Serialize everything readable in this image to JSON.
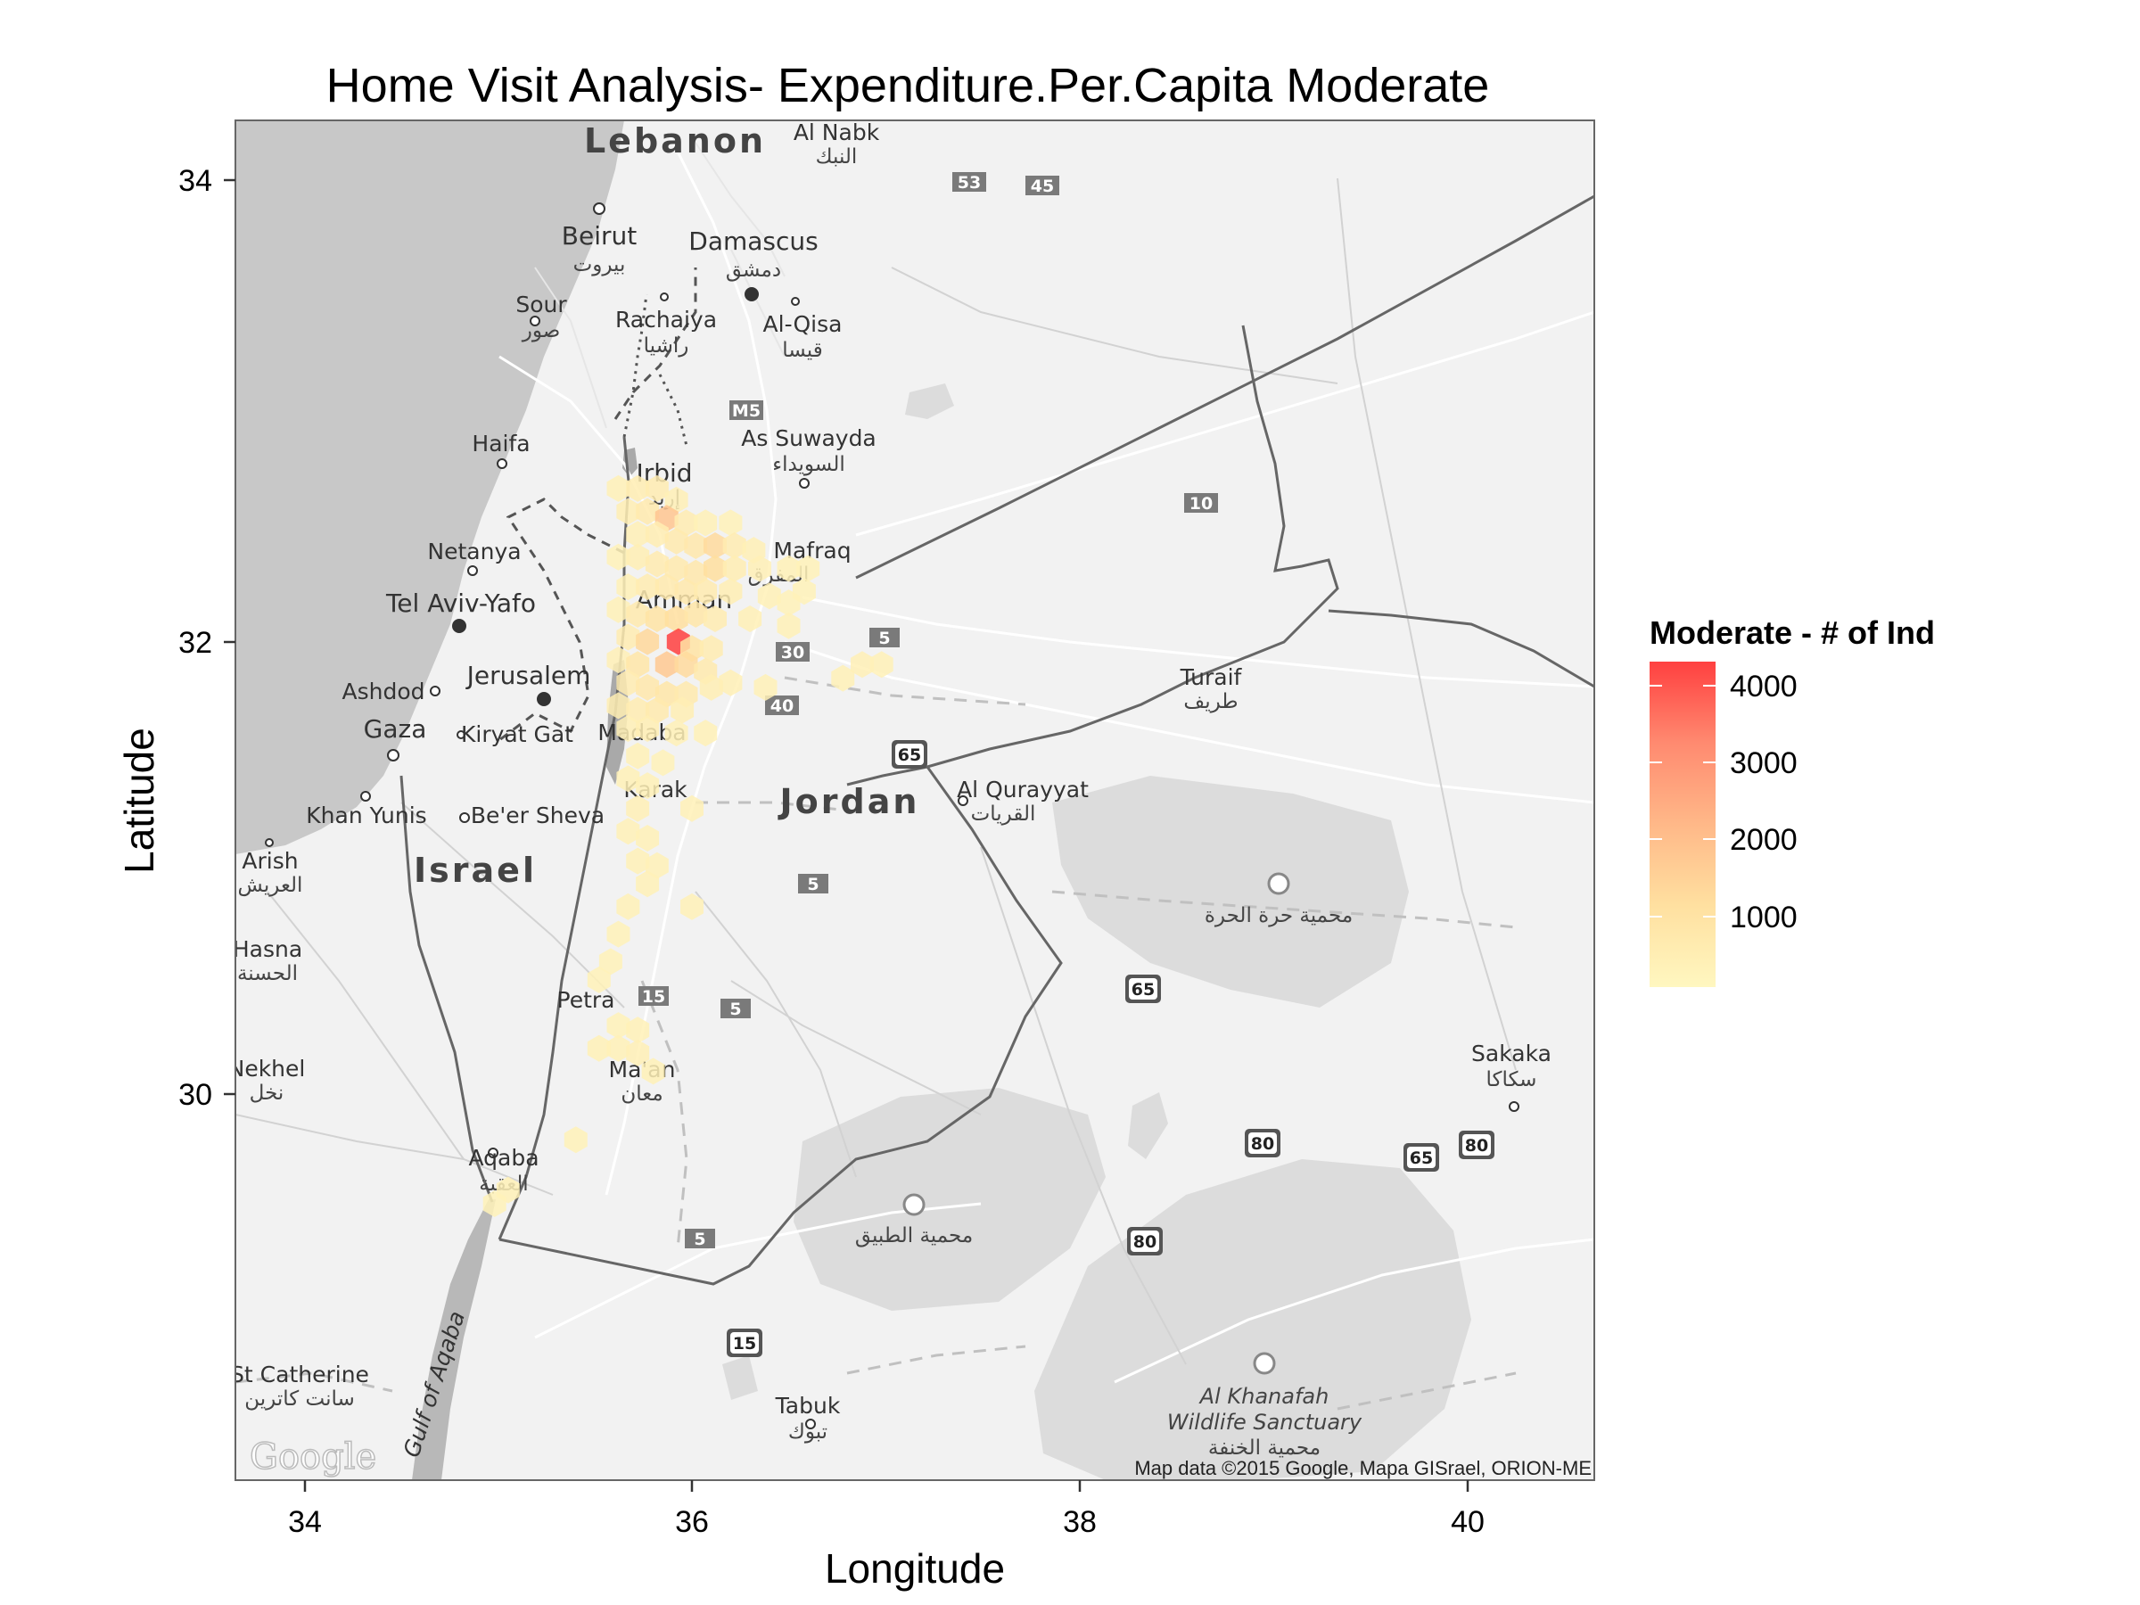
{
  "title": "Home Visit Analysis- Expenditure.Per.Capita Moderate",
  "x_axis": {
    "label": "Longitude",
    "ticks": [
      "34",
      "36",
      "38",
      "40"
    ]
  },
  "y_axis": {
    "label": "Latitude",
    "ticks": [
      "34",
      "32",
      "30"
    ]
  },
  "legend": {
    "title": "Moderate - # of Ind",
    "labels": [
      "4000",
      "3000",
      "2000",
      "1000"
    ],
    "color_low": "#FFF7C0",
    "color_high": "#FF4040"
  },
  "attribution": "Map data ©2015 Google, Mapa GISrael, ORION-ME",
  "logo": "Google",
  "map_labels": {
    "countries": [
      "Lebanon",
      "Jordan",
      "Israel"
    ],
    "cities": [
      {
        "name": "Al Nabk",
        "ar": "النبك"
      },
      {
        "name": "Beirut",
        "ar": "بيروت"
      },
      {
        "name": "Damascus",
        "ar": "دمشق"
      },
      {
        "name": "Sour",
        "ar": "صور"
      },
      {
        "name": "Rachaiya",
        "ar": "راشيا"
      },
      {
        "name": "Al-Qisa",
        "ar": "قيسا"
      },
      {
        "name": "As Suwayda",
        "ar": "السويداء"
      },
      {
        "name": "Haifa",
        "ar": ""
      },
      {
        "name": "Irbid",
        "ar": "إربد"
      },
      {
        "name": "Mafraq",
        "ar": "المفرق"
      },
      {
        "name": "Netanya",
        "ar": ""
      },
      {
        "name": "Tel Aviv-Yafo",
        "ar": ""
      },
      {
        "name": "Amman",
        "ar": ""
      },
      {
        "name": "Ashdod",
        "ar": ""
      },
      {
        "name": "Jerusalem",
        "ar": ""
      },
      {
        "name": "Gaza",
        "ar": ""
      },
      {
        "name": "Kiryat Gat",
        "ar": ""
      },
      {
        "name": "Madaba",
        "ar": ""
      },
      {
        "name": "Turaif",
        "ar": "طريف"
      },
      {
        "name": "Al Qurayyat",
        "ar": "القريات"
      },
      {
        "name": "Khan Yunis",
        "ar": ""
      },
      {
        "name": "Be'er Sheva",
        "ar": ""
      },
      {
        "name": "Karak",
        "ar": ""
      },
      {
        "name": "Arish",
        "ar": "العريش"
      },
      {
        "name": "Hasna",
        "ar": "الحسنة"
      },
      {
        "name": "Petra",
        "ar": ""
      },
      {
        "name": "Ma'an",
        "ar": "معان"
      },
      {
        "name": "Nekhel",
        "ar": "نخل"
      },
      {
        "name": "Sakaka",
        "ar": "سكاكا"
      },
      {
        "name": "Aqaba",
        "ar": "العقبة"
      },
      {
        "name": "St Catherine",
        "ar": "سانت كاترين"
      },
      {
        "name": "Tabuk",
        "ar": "تبوك"
      }
    ],
    "reserves": [
      {
        "ar": "محمية حرة الحرة"
      },
      {
        "ar": "محمية الطبيق"
      },
      {
        "name": "Al Khanafah Wildlife Sanctuary",
        "ar": "محمية الخنفة"
      }
    ],
    "water": [
      "Gulf of Aqaba"
    ],
    "road_shields": [
      "53",
      "45",
      "M5",
      "10",
      "30",
      "5",
      "40",
      "65",
      "5",
      "65",
      "15",
      "5",
      "80",
      "65",
      "80",
      "5",
      "80",
      "15"
    ]
  },
  "chart_data": {
    "type": "heatmap",
    "subtype": "hexbin-over-map",
    "title": "Home Visit Analysis- Expenditure.Per.Capita Moderate",
    "xlabel": "Longitude",
    "ylabel": "Latitude",
    "xlim": [
      33.6,
      40.67
    ],
    "ylim": [
      28.3,
      34.25
    ],
    "legend_title": "Moderate - # of Ind",
    "color_range": [
      0,
      4300
    ],
    "colorbar_ticks": [
      1000,
      2000,
      3000,
      4000
    ],
    "points": [
      {
        "lon": 35.62,
        "lat": 32.65,
        "count": 300
      },
      {
        "lon": 35.72,
        "lat": 32.65,
        "count": 450
      },
      {
        "lon": 35.82,
        "lat": 32.65,
        "count": 500
      },
      {
        "lon": 35.92,
        "lat": 32.6,
        "count": 350
      },
      {
        "lon": 35.67,
        "lat": 32.55,
        "count": 400
      },
      {
        "lon": 35.77,
        "lat": 32.55,
        "count": 600
      },
      {
        "lon": 35.87,
        "lat": 32.52,
        "count": 1800
      },
      {
        "lon": 35.97,
        "lat": 32.5,
        "count": 500
      },
      {
        "lon": 36.07,
        "lat": 32.5,
        "count": 300
      },
      {
        "lon": 36.2,
        "lat": 32.5,
        "count": 250
      },
      {
        "lon": 35.72,
        "lat": 32.45,
        "count": 350
      },
      {
        "lon": 35.82,
        "lat": 32.45,
        "count": 450
      },
      {
        "lon": 35.92,
        "lat": 32.42,
        "count": 600
      },
      {
        "lon": 36.02,
        "lat": 32.4,
        "count": 700
      },
      {
        "lon": 36.12,
        "lat": 32.4,
        "count": 1200
      },
      {
        "lon": 36.22,
        "lat": 32.4,
        "count": 500
      },
      {
        "lon": 36.32,
        "lat": 32.38,
        "count": 350
      },
      {
        "lon": 35.62,
        "lat": 32.35,
        "count": 250
      },
      {
        "lon": 35.72,
        "lat": 32.35,
        "count": 400
      },
      {
        "lon": 35.82,
        "lat": 32.32,
        "count": 550
      },
      {
        "lon": 35.92,
        "lat": 32.3,
        "count": 600
      },
      {
        "lon": 36.02,
        "lat": 32.28,
        "count": 700
      },
      {
        "lon": 36.12,
        "lat": 32.3,
        "count": 1100
      },
      {
        "lon": 36.22,
        "lat": 32.3,
        "count": 450
      },
      {
        "lon": 36.35,
        "lat": 32.3,
        "count": 350
      },
      {
        "lon": 36.5,
        "lat": 32.3,
        "count": 300
      },
      {
        "lon": 36.6,
        "lat": 32.3,
        "count": 250
      },
      {
        "lon": 35.67,
        "lat": 32.22,
        "count": 300
      },
      {
        "lon": 35.77,
        "lat": 32.22,
        "count": 500
      },
      {
        "lon": 35.87,
        "lat": 32.22,
        "count": 600
      },
      {
        "lon": 35.97,
        "lat": 32.2,
        "count": 650
      },
      {
        "lon": 36.07,
        "lat": 32.2,
        "count": 550
      },
      {
        "lon": 36.2,
        "lat": 32.2,
        "count": 400
      },
      {
        "lon": 36.4,
        "lat": 32.18,
        "count": 300
      },
      {
        "lon": 36.5,
        "lat": 32.15,
        "count": 250
      },
      {
        "lon": 36.58,
        "lat": 32.2,
        "count": 250
      },
      {
        "lon": 35.62,
        "lat": 32.12,
        "count": 300
      },
      {
        "lon": 35.72,
        "lat": 32.1,
        "count": 600
      },
      {
        "lon": 35.82,
        "lat": 32.08,
        "count": 900
      },
      {
        "lon": 35.92,
        "lat": 32.08,
        "count": 1100
      },
      {
        "lon": 36.02,
        "lat": 32.1,
        "count": 800
      },
      {
        "lon": 36.12,
        "lat": 32.08,
        "count": 500
      },
      {
        "lon": 36.3,
        "lat": 32.08,
        "count": 350
      },
      {
        "lon": 36.5,
        "lat": 32.05,
        "count": 300
      },
      {
        "lon": 35.67,
        "lat": 32.0,
        "count": 500
      },
      {
        "lon": 35.77,
        "lat": 31.98,
        "count": 1300
      },
      {
        "lon": 35.93,
        "lat": 31.98,
        "count": 4300
      },
      {
        "lon": 36.0,
        "lat": 31.95,
        "count": 900
      },
      {
        "lon": 36.1,
        "lat": 31.95,
        "count": 500
      },
      {
        "lon": 35.62,
        "lat": 31.9,
        "count": 350
      },
      {
        "lon": 35.72,
        "lat": 31.88,
        "count": 800
      },
      {
        "lon": 35.87,
        "lat": 31.88,
        "count": 1700
      },
      {
        "lon": 35.97,
        "lat": 31.88,
        "count": 1200
      },
      {
        "lon": 36.07,
        "lat": 31.85,
        "count": 600
      },
      {
        "lon": 36.2,
        "lat": 31.8,
        "count": 350
      },
      {
        "lon": 35.67,
        "lat": 31.8,
        "count": 500
      },
      {
        "lon": 35.77,
        "lat": 31.78,
        "count": 700
      },
      {
        "lon": 35.87,
        "lat": 31.75,
        "count": 800
      },
      {
        "lon": 35.97,
        "lat": 31.75,
        "count": 600
      },
      {
        "lon": 36.1,
        "lat": 31.78,
        "count": 400
      },
      {
        "lon": 36.38,
        "lat": 31.78,
        "count": 300
      },
      {
        "lon": 36.78,
        "lat": 31.82,
        "count": 300
      },
      {
        "lon": 36.88,
        "lat": 31.88,
        "count": 350
      },
      {
        "lon": 36.98,
        "lat": 31.88,
        "count": 300
      },
      {
        "lon": 35.62,
        "lat": 31.7,
        "count": 400
      },
      {
        "lon": 35.72,
        "lat": 31.68,
        "count": 500
      },
      {
        "lon": 35.82,
        "lat": 31.68,
        "count": 600
      },
      {
        "lon": 35.95,
        "lat": 31.68,
        "count": 400
      },
      {
        "lon": 35.67,
        "lat": 31.6,
        "count": 350
      },
      {
        "lon": 35.77,
        "lat": 31.6,
        "count": 400
      },
      {
        "lon": 35.92,
        "lat": 31.58,
        "count": 300
      },
      {
        "lon": 36.07,
        "lat": 31.58,
        "count": 300
      },
      {
        "lon": 35.72,
        "lat": 31.48,
        "count": 300
      },
      {
        "lon": 35.85,
        "lat": 31.45,
        "count": 250
      },
      {
        "lon": 35.67,
        "lat": 31.38,
        "count": 300
      },
      {
        "lon": 35.77,
        "lat": 31.35,
        "count": 300
      },
      {
        "lon": 35.72,
        "lat": 31.25,
        "count": 350
      },
      {
        "lon": 36.0,
        "lat": 31.25,
        "count": 300
      },
      {
        "lon": 35.67,
        "lat": 31.15,
        "count": 300
      },
      {
        "lon": 35.77,
        "lat": 31.12,
        "count": 300
      },
      {
        "lon": 35.72,
        "lat": 31.02,
        "count": 300
      },
      {
        "lon": 35.82,
        "lat": 31.0,
        "count": 300
      },
      {
        "lon": 35.77,
        "lat": 30.92,
        "count": 300
      },
      {
        "lon": 35.67,
        "lat": 30.82,
        "count": 300
      },
      {
        "lon": 36.0,
        "lat": 30.82,
        "count": 300
      },
      {
        "lon": 35.62,
        "lat": 30.7,
        "count": 250
      },
      {
        "lon": 35.58,
        "lat": 30.58,
        "count": 250
      },
      {
        "lon": 35.52,
        "lat": 30.5,
        "count": 250
      },
      {
        "lon": 35.62,
        "lat": 30.3,
        "count": 250
      },
      {
        "lon": 35.72,
        "lat": 30.28,
        "count": 300
      },
      {
        "lon": 35.52,
        "lat": 30.2,
        "count": 300
      },
      {
        "lon": 35.62,
        "lat": 30.2,
        "count": 300
      },
      {
        "lon": 35.72,
        "lat": 30.18,
        "count": 350
      },
      {
        "lon": 35.8,
        "lat": 30.1,
        "count": 300
      },
      {
        "lon": 35.4,
        "lat": 29.8,
        "count": 250
      },
      {
        "lon": 35.05,
        "lat": 29.58,
        "count": 300
      },
      {
        "lon": 34.98,
        "lat": 29.52,
        "count": 250
      }
    ]
  }
}
